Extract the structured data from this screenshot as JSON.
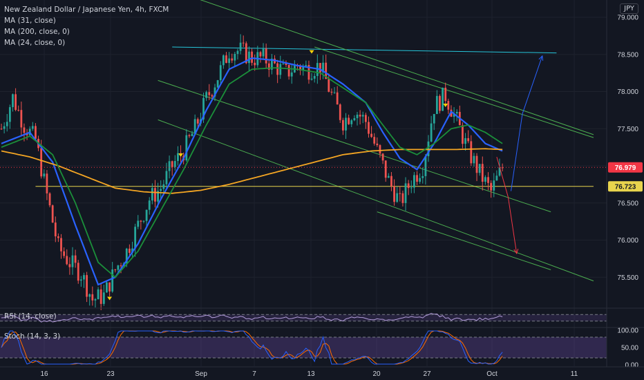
{
  "header": {
    "title": "New Zealand Dollar / Japanese Yen, 4h, FXCM",
    "indicators": [
      "MA (31, close)",
      "MA (200, close, 0)",
      "MA (24, close, 0)"
    ],
    "currency": "JPY"
  },
  "colors": {
    "background": "#131722",
    "grid": "#1e222d",
    "text": "#d1d4dc",
    "up_candle": "#26a69a",
    "down_candle": "#ef5350",
    "ma31": "#2962ff",
    "ma200": "#f5a623",
    "ma24": "#1b8f3a",
    "channel": "#4caf50",
    "resistance": "#26c6da",
    "support": "#e8d44d",
    "current_price": "#f23645",
    "arrow_up": "#2962ff",
    "arrow_down": "#f23645",
    "rsi": "#b39ddb",
    "stoch_k": "#2962ff",
    "stoch_d": "#ff6d00",
    "stoch_band": "#7e57c2"
  },
  "rsi_pane": {
    "label": "RSI (14, close)"
  },
  "stoch_pane": {
    "label": "Stoch (14, 3, 3)",
    "ticks": [
      "100.00",
      "50.00",
      "0.00"
    ]
  },
  "chart_data": {
    "type": "candlestick",
    "title": "New Zealand Dollar / Japanese Yen, 4h, FXCM",
    "ylim": [
      75.1,
      79.2
    ],
    "y_ticks": [
      "79.000",
      "78.500",
      "78.000",
      "77.500",
      "77.000",
      "76.500",
      "76.000",
      "75.500"
    ],
    "x_ticks": [
      "16",
      "23",
      "Sep",
      "7",
      "13",
      "20",
      "27",
      "Oct",
      "11"
    ],
    "price_labels": [
      {
        "value": 76.979,
        "text": "76.979",
        "kind": "current"
      },
      {
        "value": 76.723,
        "text": "76.723",
        "kind": "support"
      }
    ],
    "trendlines": [
      {
        "name": "resistance",
        "from": {
          "bar": 60,
          "price": 78.6
        },
        "to": {
          "bar": 195,
          "price": 78.52
        }
      },
      {
        "name": "channel-upper-a",
        "from": {
          "bar": 65,
          "price": 79.3
        },
        "to": {
          "bar": 208,
          "price": 77.42
        }
      },
      {
        "name": "channel-upper-b",
        "from": {
          "bar": 110,
          "price": 78.6
        },
        "to": {
          "bar": 208,
          "price": 77.38
        }
      },
      {
        "name": "channel-mid",
        "from": {
          "bar": 55,
          "price": 78.15
        },
        "to": {
          "bar": 193,
          "price": 76.38
        }
      },
      {
        "name": "channel-lower-a",
        "from": {
          "bar": 55,
          "price": 77.62
        },
        "to": {
          "bar": 208,
          "price": 75.45
        }
      },
      {
        "name": "channel-lower-b",
        "from": {
          "bar": 132,
          "price": 76.38
        },
        "to": {
          "bar": 193,
          "price": 75.6
        }
      },
      {
        "name": "support",
        "from": {
          "bar": 12,
          "price": 76.723
        },
        "to": {
          "bar": 208,
          "price": 76.723
        }
      }
    ],
    "projections": [
      {
        "name": "up",
        "points": [
          {
            "bar": 179,
            "price": 76.66
          },
          {
            "bar": 183,
            "price": 77.7
          },
          {
            "bar": 190,
            "price": 78.48
          }
        ]
      },
      {
        "name": "down",
        "points": [
          {
            "bar": 174,
            "price": 77.12
          },
          {
            "bar": 178,
            "price": 76.58
          },
          {
            "bar": 181,
            "price": 75.82
          }
        ]
      }
    ],
    "markers": [
      {
        "bar": 38,
        "price": 75.2
      },
      {
        "bar": 63,
        "price": 77.13
      },
      {
        "bar": 109,
        "price": 78.52
      },
      {
        "bar": 156,
        "price": 77.8
      }
    ],
    "series": [
      {
        "name": "price",
        "anchors": [
          [
            0,
            77.5
          ],
          [
            4,
            77.92
          ],
          [
            8,
            77.55
          ],
          [
            12,
            77.35
          ],
          [
            16,
            76.6
          ],
          [
            20,
            75.9
          ],
          [
            24,
            75.7
          ],
          [
            28,
            75.55
          ],
          [
            32,
            75.2
          ],
          [
            36,
            75.25
          ],
          [
            40,
            75.6
          ],
          [
            44,
            75.85
          ],
          [
            48,
            76.2
          ],
          [
            52,
            76.55
          ],
          [
            56,
            76.7
          ],
          [
            60,
            77.0
          ],
          [
            64,
            77.2
          ],
          [
            68,
            77.5
          ],
          [
            72,
            77.9
          ],
          [
            76,
            78.2
          ],
          [
            80,
            78.55
          ],
          [
            84,
            78.55
          ],
          [
            88,
            78.45
          ],
          [
            92,
            78.45
          ],
          [
            96,
            78.35
          ],
          [
            100,
            78.25
          ],
          [
            104,
            78.35
          ],
          [
            108,
            78.3
          ],
          [
            112,
            78.35
          ],
          [
            116,
            77.95
          ],
          [
            120,
            77.6
          ],
          [
            124,
            77.75
          ],
          [
            128,
            77.6
          ],
          [
            132,
            77.2
          ],
          [
            136,
            76.8
          ],
          [
            140,
            76.5
          ],
          [
            144,
            76.8
          ],
          [
            148,
            77.0
          ],
          [
            152,
            77.8
          ],
          [
            156,
            77.95
          ],
          [
            160,
            77.6
          ],
          [
            164,
            77.2
          ],
          [
            168,
            76.9
          ],
          [
            172,
            76.65
          ],
          [
            176,
            76.98
          ]
        ]
      },
      {
        "name": "MA (31, close)",
        "anchors": [
          [
            0,
            77.3
          ],
          [
            10,
            77.45
          ],
          [
            18,
            77.05
          ],
          [
            26,
            76.2
          ],
          [
            34,
            75.4
          ],
          [
            40,
            75.5
          ],
          [
            48,
            75.95
          ],
          [
            56,
            76.55
          ],
          [
            64,
            77.1
          ],
          [
            72,
            77.75
          ],
          [
            80,
            78.3
          ],
          [
            88,
            78.45
          ],
          [
            96,
            78.42
          ],
          [
            104,
            78.35
          ],
          [
            112,
            78.3
          ],
          [
            120,
            78.1
          ],
          [
            128,
            77.85
          ],
          [
            134,
            77.45
          ],
          [
            140,
            77.1
          ],
          [
            146,
            76.95
          ],
          [
            152,
            77.3
          ],
          [
            158,
            77.73
          ],
          [
            164,
            77.55
          ],
          [
            170,
            77.3
          ],
          [
            176,
            77.2
          ]
        ]
      },
      {
        "name": "MA (200, close, 0)",
        "anchors": [
          [
            0,
            77.2
          ],
          [
            10,
            77.12
          ],
          [
            20,
            77.0
          ],
          [
            30,
            76.85
          ],
          [
            40,
            76.7
          ],
          [
            50,
            76.65
          ],
          [
            60,
            76.63
          ],
          [
            70,
            76.67
          ],
          [
            80,
            76.75
          ],
          [
            90,
            76.85
          ],
          [
            100,
            76.95
          ],
          [
            110,
            77.05
          ],
          [
            120,
            77.15
          ],
          [
            130,
            77.2
          ],
          [
            140,
            77.22
          ],
          [
            150,
            77.22
          ],
          [
            160,
            77.22
          ],
          [
            170,
            77.23
          ],
          [
            176,
            77.22
          ]
        ]
      },
      {
        "name": "MA (24, close, 0)",
        "anchors": [
          [
            0,
            77.25
          ],
          [
            10,
            77.4
          ],
          [
            18,
            77.15
          ],
          [
            26,
            76.5
          ],
          [
            34,
            75.7
          ],
          [
            40,
            75.5
          ],
          [
            48,
            75.85
          ],
          [
            56,
            76.4
          ],
          [
            64,
            76.95
          ],
          [
            72,
            77.55
          ],
          [
            80,
            78.1
          ],
          [
            88,
            78.3
          ],
          [
            96,
            78.32
          ],
          [
            104,
            78.3
          ],
          [
            112,
            78.25
          ],
          [
            120,
            78.05
          ],
          [
            128,
            77.85
          ],
          [
            134,
            77.55
          ],
          [
            140,
            77.25
          ],
          [
            146,
            77.15
          ],
          [
            152,
            77.3
          ],
          [
            158,
            77.5
          ],
          [
            164,
            77.55
          ],
          [
            170,
            77.45
          ],
          [
            176,
            77.3
          ]
        ]
      }
    ],
    "rsi": {
      "name": "RSI (14, close)",
      "upper": 70,
      "lower": 30
    },
    "stoch": {
      "name": "Stoch (14, 3, 3)",
      "upper": 80,
      "lower": 20,
      "ylim": [
        0,
        100
      ]
    }
  }
}
